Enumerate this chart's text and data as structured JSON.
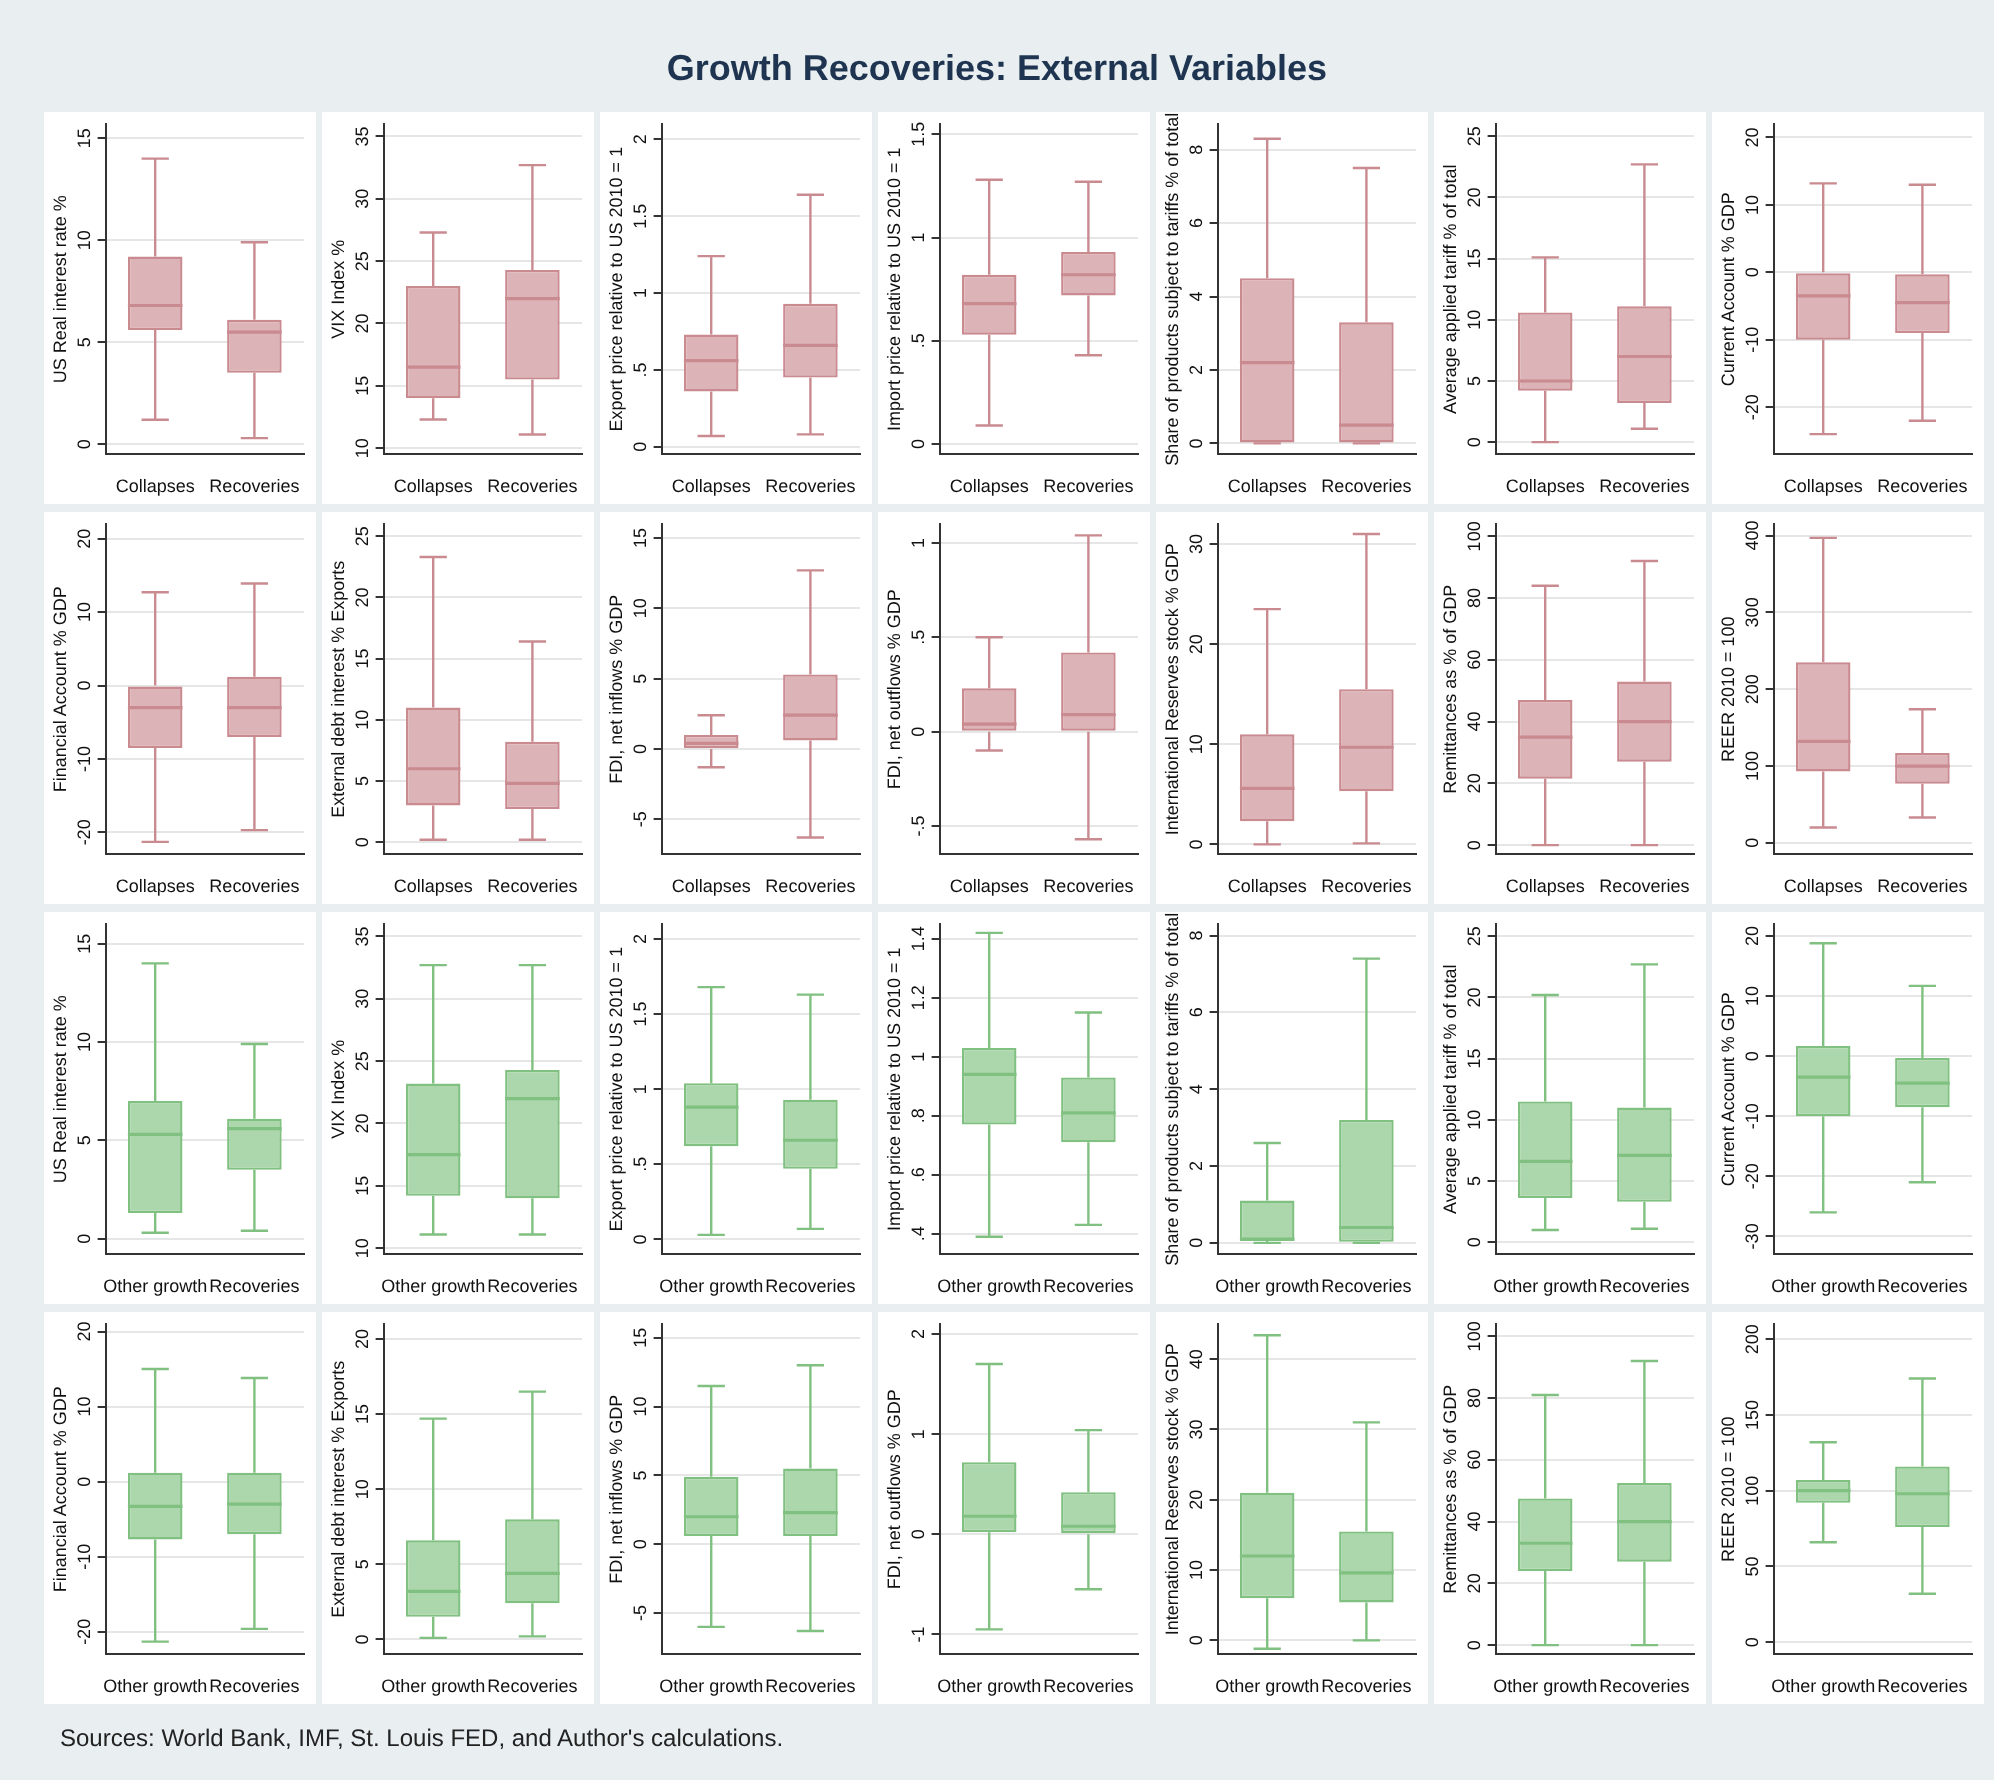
{
  "chart_data": [
    {
      "type": "other",
      "title": "Growth Recoveries: External Variables"
    },
    {
      "type": "box",
      "categories": [
        "Collapses",
        "Recoveries"
      ],
      "color": "#c98a90",
      "grid": "y",
      "ylabel": "US Real interest rate %",
      "ylim": [
        -0.5,
        15.7
      ],
      "yticks": [
        0,
        5,
        10,
        15
      ],
      "boxes": [
        {
          "low": 1.2,
          "q1": 5.6,
          "median": 6.8,
          "q3": 9.2,
          "high": 14
        },
        {
          "low": 0.3,
          "q1": 3.5,
          "median": 5.5,
          "q3": 6.1,
          "high": 9.9
        }
      ]
    },
    {
      "type": "box",
      "categories": [
        "Collapses",
        "Recoveries"
      ],
      "color": "#c98a90",
      "grid": "y",
      "ylabel": "VIX Index %",
      "ylim": [
        9.5,
        36
      ],
      "yticks": [
        10,
        15,
        20,
        25,
        30,
        35
      ],
      "boxes": [
        {
          "low": 12.3,
          "q1": 14,
          "median": 16.5,
          "q3": 23,
          "high": 27.3
        },
        {
          "low": 11.1,
          "q1": 15.5,
          "median": 22,
          "q3": 24.3,
          "high": 32.7
        }
      ]
    },
    {
      "type": "box",
      "categories": [
        "Collapses",
        "Recoveries"
      ],
      "color": "#c98a90",
      "grid": "y",
      "ylabel": "Export price relative to US 2010 = 1",
      "ylim": [
        -0.05,
        2.1
      ],
      "yticks": [
        0,
        {
          "value": 0.5,
          "label": ".5"
        },
        1,
        1.5,
        2
      ],
      "boxes": [
        {
          "low": 0.07,
          "q1": 0.36,
          "median": 0.56,
          "q3": 0.73,
          "high": 1.24
        },
        {
          "low": 0.08,
          "q1": 0.45,
          "median": 0.66,
          "q3": 0.93,
          "high": 1.64
        }
      ]
    },
    {
      "type": "box",
      "categories": [
        "Collapses",
        "Recoveries"
      ],
      "color": "#c98a90",
      "grid": "y",
      "ylabel": "Import price relative to US 2010 = 1",
      "ylim": [
        -0.05,
        1.55
      ],
      "yticks": [
        0,
        {
          "value": 0.5,
          "label": ".5"
        },
        1,
        1.5
      ],
      "boxes": [
        {
          "low": 0.09,
          "q1": 0.53,
          "median": 0.68,
          "q3": 0.82,
          "high": 1.28
        },
        {
          "low": 0.43,
          "q1": 0.72,
          "median": 0.82,
          "q3": 0.93,
          "high": 1.27
        }
      ]
    },
    {
      "type": "box",
      "categories": [
        "Collapses",
        "Recoveries"
      ],
      "color": "#c98a90",
      "grid": "y",
      "ylabel": "Share of products subject to tariffs % of total",
      "ylim": [
        -0.3,
        8.7
      ],
      "yticks": [
        0,
        2,
        4,
        6,
        8
      ],
      "boxes": [
        {
          "low": 0,
          "q1": 0,
          "median": 2.2,
          "q3": 4.5,
          "high": 8.3
        },
        {
          "low": 0,
          "q1": 0,
          "median": 0.5,
          "q3": 3.3,
          "high": 7.5
        }
      ]
    },
    {
      "type": "box",
      "categories": [
        "Collapses",
        "Recoveries"
      ],
      "color": "#c98a90",
      "grid": "y",
      "ylabel": "Average applied tariff % of total",
      "ylim": [
        -1,
        26
      ],
      "yticks": [
        0,
        5,
        10,
        15,
        20,
        25
      ],
      "boxes": [
        {
          "low": 0,
          "q1": 4.2,
          "median": 5,
          "q3": 10.6,
          "high": 15.1
        },
        {
          "low": 1.1,
          "q1": 3.2,
          "median": 7,
          "q3": 11.1,
          "high": 22.7
        }
      ]
    },
    {
      "type": "box",
      "categories": [
        "Collapses",
        "Recoveries"
      ],
      "color": "#c98a90",
      "grid": "y",
      "ylabel": "Current Account % GDP",
      "ylim": [
        -27,
        22
      ],
      "yticks": [
        -20,
        -10,
        0,
        10,
        20
      ],
      "boxes": [
        {
          "low": -24,
          "q1": -10,
          "median": -3.5,
          "q3": 0,
          "high": 13.2
        },
        {
          "low": -22,
          "q1": -9,
          "median": -4.5,
          "q3": -0.3,
          "high": 13
        }
      ]
    },
    {
      "type": "box",
      "categories": [
        "Collapses",
        "Recoveries"
      ],
      "color": "#c98a90",
      "grid": "y",
      "ylabel": "Financial Account % GDP",
      "ylim": [
        -23,
        22
      ],
      "yticks": [
        -20,
        -10,
        0,
        10,
        20
      ],
      "boxes": [
        {
          "low": -21.3,
          "q1": -8.5,
          "median": -3,
          "q3": 0,
          "high": 12.7
        },
        {
          "low": -19.7,
          "q1": -7,
          "median": -3,
          "q3": 1.2,
          "high": 13.9
        }
      ]
    },
    {
      "type": "box",
      "categories": [
        "Collapses",
        "Recoveries"
      ],
      "color": "#c98a90",
      "grid": "y",
      "ylabel": "External debt interest % Exports",
      "ylim": [
        -1,
        26
      ],
      "yticks": [
        0,
        5,
        10,
        15,
        20,
        25
      ],
      "boxes": [
        {
          "low": 0.2,
          "q1": 3,
          "median": 6,
          "q3": 11,
          "high": 23.3
        },
        {
          "low": 0.2,
          "q1": 2.7,
          "median": 4.8,
          "q3": 8.2,
          "high": 16.4
        }
      ]
    },
    {
      "type": "box",
      "categories": [
        "Collapses",
        "Recoveries"
      ],
      "color": "#c98a90",
      "grid": "y",
      "ylabel": "FDI, net inflows % GDP",
      "ylim": [
        -7.5,
        16
      ],
      "yticks": [
        -5,
        0,
        5,
        10,
        15
      ],
      "boxes": [
        {
          "low": -1.3,
          "q1": 0,
          "median": 0.4,
          "q3": 1,
          "high": 2.4
        },
        {
          "low": -6.3,
          "q1": 0.6,
          "median": 2.4,
          "q3": 5.3,
          "high": 12.7
        }
      ]
    },
    {
      "type": "box",
      "categories": [
        "Collapses",
        "Recoveries"
      ],
      "color": "#c98a90",
      "grid": "y",
      "ylabel": "FDI, net outflows % GDP",
      "ylim": [
        -0.65,
        1.1
      ],
      "yticks": [
        {
          "value": -0.5,
          "label": "-.5"
        },
        0,
        {
          "value": 0.5,
          "label": ".5"
        },
        1
      ],
      "boxes": [
        {
          "low": -0.1,
          "q1": 0,
          "median": 0.04,
          "q3": 0.23,
          "high": 0.5
        },
        {
          "low": -0.57,
          "q1": 0,
          "median": 0.09,
          "q3": 0.42,
          "high": 1.04
        }
      ]
    },
    {
      "type": "box",
      "categories": [
        "Collapses",
        "Recoveries"
      ],
      "color": "#c98a90",
      "grid": "y",
      "ylabel": "International Reserves stock % GDP",
      "ylim": [
        -1,
        32
      ],
      "yticks": [
        0,
        10,
        20,
        30
      ],
      "boxes": [
        {
          "low": 0,
          "q1": 2.3,
          "median": 5.6,
          "q3": 11,
          "high": 23.5
        },
        {
          "low": 0.1,
          "q1": 5.3,
          "median": 9.7,
          "q3": 15.5,
          "high": 31
        }
      ]
    },
    {
      "type": "box",
      "categories": [
        "Collapses",
        "Recoveries"
      ],
      "color": "#c98a90",
      "grid": "y",
      "ylabel": "Remittances as % of GDP",
      "ylim": [
        -3,
        104
      ],
      "yticks": [
        0,
        20,
        40,
        60,
        80,
        100
      ],
      "boxes": [
        {
          "low": 0,
          "q1": 21.5,
          "median": 35,
          "q3": 47,
          "high": 84
        },
        {
          "low": 0,
          "q1": 27,
          "median": 40,
          "q3": 53,
          "high": 92
        }
      ]
    },
    {
      "type": "box",
      "categories": [
        "Collapses",
        "Recoveries"
      ],
      "color": "#c98a90",
      "grid": "y",
      "ylabel": "REER 2010 = 100",
      "ylim": [
        -15,
        415
      ],
      "yticks": [
        0,
        100,
        200,
        300,
        400
      ],
      "boxes": [
        {
          "low": 20,
          "q1": 93,
          "median": 132,
          "q3": 235,
          "high": 397
        },
        {
          "low": 33,
          "q1": 77,
          "median": 100,
          "q3": 117,
          "high": 174
        }
      ]
    },
    {
      "type": "box",
      "categories": [
        "Other growth",
        "Recoveries"
      ],
      "color": "#80c080",
      "grid": "y",
      "ylabel": "US Real interest rate %",
      "ylim": [
        -0.8,
        16
      ],
      "yticks": [
        0,
        5,
        10,
        15
      ],
      "boxes": [
        {
          "low": 0.3,
          "q1": 1.3,
          "median": 5.3,
          "q3": 7,
          "high": 14
        },
        {
          "low": 0.4,
          "q1": 3.5,
          "median": 5.6,
          "q3": 6.1,
          "high": 9.9
        }
      ]
    },
    {
      "type": "box",
      "categories": [
        "Other growth",
        "Recoveries"
      ],
      "color": "#80c080",
      "grid": "y",
      "ylabel": "VIX Index %",
      "ylim": [
        9.5,
        36
      ],
      "yticks": [
        10,
        15,
        20,
        25,
        30,
        35
      ],
      "boxes": [
        {
          "low": 11.1,
          "q1": 14.2,
          "median": 17.5,
          "q3": 23.2,
          "high": 32.7
        },
        {
          "low": 11.1,
          "q1": 14,
          "median": 22,
          "q3": 24.3,
          "high": 32.7
        }
      ]
    },
    {
      "type": "box",
      "categories": [
        "Other growth",
        "Recoveries"
      ],
      "color": "#80c080",
      "grid": "y",
      "ylabel": "Export price relative to US 2010 = 1",
      "ylim": [
        -0.1,
        2.1
      ],
      "yticks": [
        0,
        {
          "value": 0.5,
          "label": ".5"
        },
        1,
        1.5,
        2
      ],
      "boxes": [
        {
          "low": 0.03,
          "q1": 0.62,
          "median": 0.88,
          "q3": 1.04,
          "high": 1.68
        },
        {
          "low": 0.07,
          "q1": 0.47,
          "median": 0.66,
          "q3": 0.93,
          "high": 1.63
        }
      ]
    },
    {
      "type": "box",
      "categories": [
        "Other growth",
        "Recoveries"
      ],
      "color": "#80c080",
      "grid": "y",
      "ylabel": "Import price relative to US 2010 = 1",
      "ylim": [
        0.33,
        1.45
      ],
      "yticks": [
        {
          "value": 0.4,
          "label": ".4"
        },
        {
          "value": 0.6,
          "label": ".6"
        },
        {
          "value": 0.8,
          "label": ".8"
        },
        1,
        1.2,
        1.4
      ],
      "boxes": [
        {
          "low": 0.39,
          "q1": 0.77,
          "median": 0.94,
          "q3": 1.03,
          "high": 1.42
        },
        {
          "low": 0.43,
          "q1": 0.71,
          "median": 0.81,
          "q3": 0.93,
          "high": 1.15
        }
      ]
    },
    {
      "type": "box",
      "categories": [
        "Other growth",
        "Recoveries"
      ],
      "color": "#80c080",
      "grid": "y",
      "ylabel": "Share of products subject to tariffs % of total",
      "ylim": [
        -0.3,
        8.3
      ],
      "yticks": [
        0,
        2,
        4,
        6,
        8
      ],
      "boxes": [
        {
          "low": 0,
          "q1": 0.05,
          "median": 0.1,
          "q3": 1.1,
          "high": 2.6
        },
        {
          "low": 0,
          "q1": 0,
          "median": 0.4,
          "q3": 3.2,
          "high": 7.4
        }
      ]
    },
    {
      "type": "box",
      "categories": [
        "Other growth",
        "Recoveries"
      ],
      "color": "#80c080",
      "grid": "y",
      "ylabel": "Average applied tariff % of total",
      "ylim": [
        -1,
        26
      ],
      "yticks": [
        0,
        5,
        10,
        15,
        20,
        25
      ],
      "boxes": [
        {
          "low": 1,
          "q1": 3.6,
          "median": 6.6,
          "q3": 11.5,
          "high": 20.2
        },
        {
          "low": 1.1,
          "q1": 3.3,
          "median": 7.1,
          "q3": 11,
          "high": 22.7
        }
      ]
    },
    {
      "type": "box",
      "categories": [
        "Other growth",
        "Recoveries"
      ],
      "color": "#80c080",
      "grid": "y",
      "ylabel": "Current Account % GDP",
      "ylim": [
        -33,
        22
      ],
      "yticks": [
        -30,
        -20,
        -10,
        0,
        10,
        20
      ],
      "boxes": [
        {
          "low": -26,
          "q1": -10,
          "median": -3.5,
          "q3": 1.7,
          "high": 18.8
        },
        {
          "low": -21,
          "q1": -8.5,
          "median": -4.5,
          "q3": -0.3,
          "high": 11.7
        }
      ]
    },
    {
      "type": "box",
      "categories": [
        "Other growth",
        "Recoveries"
      ],
      "color": "#80c080",
      "grid": "y",
      "ylabel": "Financial Account % GDP",
      "ylim": [
        -23,
        21
      ],
      "yticks": [
        -20,
        -10,
        0,
        10,
        20
      ],
      "boxes": [
        {
          "low": -21.3,
          "q1": -7.7,
          "median": -3.3,
          "q3": 1.2,
          "high": 15
        },
        {
          "low": -19.6,
          "q1": -7,
          "median": -3,
          "q3": 1.2,
          "high": 13.8
        }
      ]
    },
    {
      "type": "box",
      "categories": [
        "Other growth",
        "Recoveries"
      ],
      "color": "#80c080",
      "grid": "y",
      "ylabel": "External debt interest % Exports",
      "ylim": [
        -1,
        21
      ],
      "yticks": [
        0,
        5,
        10,
        15,
        20
      ],
      "boxes": [
        {
          "low": 0.1,
          "q1": 1.5,
          "median": 3.2,
          "q3": 6.6,
          "high": 14.7
        },
        {
          "low": 0.2,
          "q1": 2.4,
          "median": 4.4,
          "q3": 8,
          "high": 16.5
        }
      ]
    },
    {
      "type": "box",
      "categories": [
        "Other growth",
        "Recoveries"
      ],
      "color": "#80c080",
      "grid": "y",
      "ylabel": "FDI, net inflows % GDP",
      "ylim": [
        -8,
        16
      ],
      "yticks": [
        -5,
        0,
        5,
        10,
        15
      ],
      "boxes": [
        {
          "low": -6,
          "q1": 0.6,
          "median": 2,
          "q3": 4.9,
          "high": 11.5
        },
        {
          "low": -6.3,
          "q1": 0.6,
          "median": 2.3,
          "q3": 5.5,
          "high": 13
        }
      ]
    },
    {
      "type": "box",
      "categories": [
        "Other growth",
        "Recoveries"
      ],
      "color": "#80c080",
      "grid": "y",
      "ylabel": "FDI, net outflows % GDP",
      "ylim": [
        -1.2,
        2.1
      ],
      "yticks": [
        -1,
        0,
        1,
        2
      ],
      "boxes": [
        {
          "low": -0.95,
          "q1": 0.02,
          "median": 0.18,
          "q3": 0.72,
          "high": 1.7
        },
        {
          "low": -0.55,
          "q1": 0,
          "median": 0.08,
          "q3": 0.42,
          "high": 1.04
        }
      ]
    },
    {
      "type": "box",
      "categories": [
        "Other growth",
        "Recoveries"
      ],
      "color": "#80c080",
      "grid": "y",
      "ylabel": "International Reserves stock % GDP",
      "ylim": [
        -2,
        45
      ],
      "yticks": [
        0,
        10,
        20,
        30,
        40
      ],
      "boxes": [
        {
          "low": -1.2,
          "q1": 6,
          "median": 12,
          "q3": 21,
          "high": 43.4
        },
        {
          "low": 0,
          "q1": 5.4,
          "median": 9.6,
          "q3": 15.5,
          "high": 31
        }
      ]
    },
    {
      "type": "box",
      "categories": [
        "Other growth",
        "Recoveries"
      ],
      "color": "#80c080",
      "grid": "y",
      "ylabel": "Remittances as % of GDP",
      "ylim": [
        -3,
        104
      ],
      "yticks": [
        0,
        20,
        40,
        60,
        80,
        100
      ],
      "boxes": [
        {
          "low": 0,
          "q1": 24,
          "median": 33,
          "q3": 47.5,
          "high": 81
        },
        {
          "low": 0,
          "q1": 27,
          "median": 40,
          "q3": 52.5,
          "high": 92
        }
      ]
    },
    {
      "type": "box",
      "categories": [
        "Other growth",
        "Recoveries"
      ],
      "color": "#80c080",
      "grid": "y",
      "ylabel": "REER 2010 = 100",
      "ylim": [
        -8,
        210
      ],
      "yticks": [
        0,
        50,
        100,
        150,
        200
      ],
      "boxes": [
        {
          "low": 66,
          "q1": 92,
          "median": 100,
          "q3": 107,
          "high": 132
        },
        {
          "low": 32,
          "q1": 76,
          "median": 98,
          "q3": 116,
          "high": 174
        }
      ]
    },
    {
      "type": "other",
      "annotations": [
        "Sources: World Bank, IMF, St. Louis FED, and Author's calculations."
      ]
    }
  ]
}
